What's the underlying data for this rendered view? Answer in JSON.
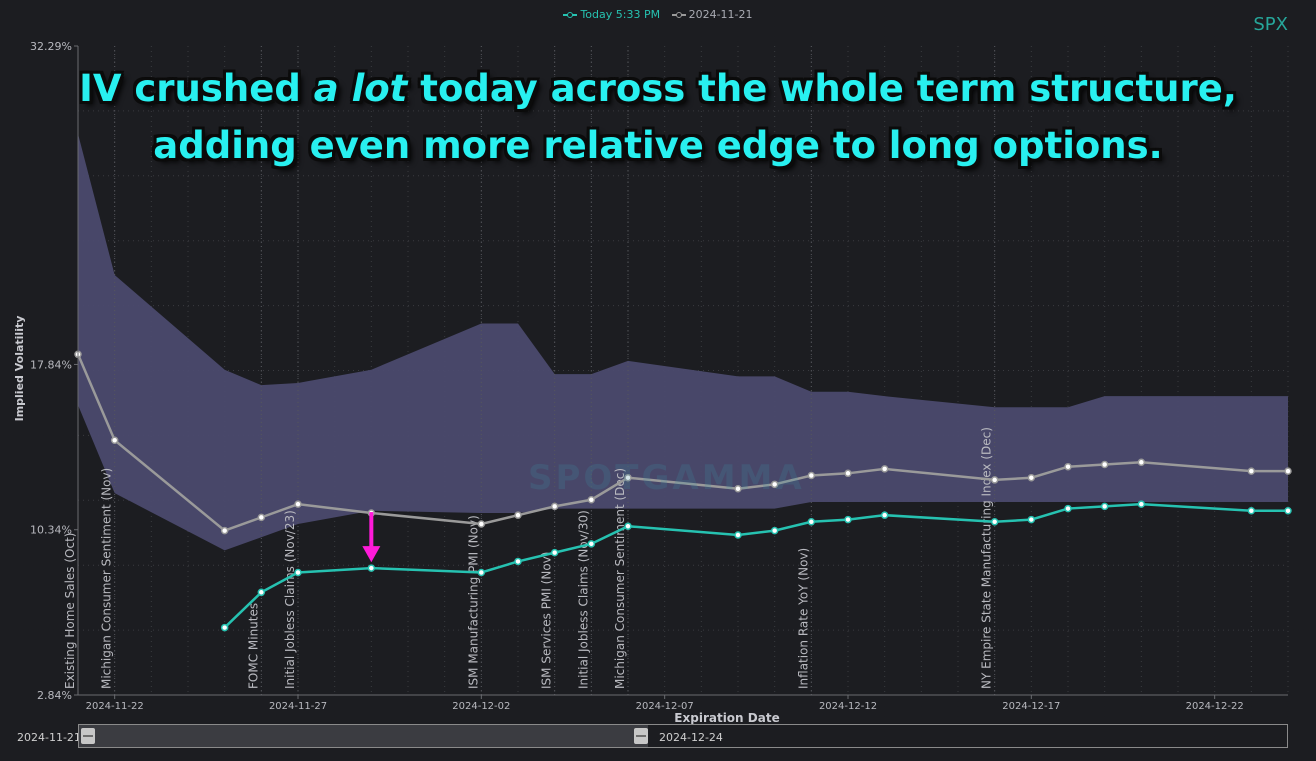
{
  "ticker": "SPX",
  "headline": {
    "line1_before": "IV crushed ",
    "line1_emph": "a lot",
    "line1_after": " today across the whole term structure,",
    "line2": "adding even more relative edge to long options."
  },
  "watermark": "SPOTGAMMA",
  "legend": {
    "today": "Today 5:33 PM",
    "prior": "2024-11-21"
  },
  "range_selector": {
    "start_label": "2024-11-21",
    "end_label": "2024-12-24",
    "selected_fraction": 0.47
  },
  "colors": {
    "background": "#1c1d21",
    "today_line": "#26c2b1",
    "prior_line": "#9a9a9a",
    "band_fill": "#4b4a6e",
    "arrow": "#ff1ad9",
    "headline": "#28f0f0"
  },
  "chart_data": {
    "type": "line",
    "xlabel": "Expiration Date",
    "ylabel": "Implied Volatility",
    "xlim": [
      "2024-11-21",
      "2024-12-24"
    ],
    "yticks": [
      {
        "value": 2.84,
        "label": "2.84%"
      },
      {
        "value": 10.34,
        "label": "10.34%"
      },
      {
        "value": 17.84,
        "label": "17.84%"
      },
      {
        "value": 32.29,
        "label": "32.29%"
      }
    ],
    "xticks": [
      "2024-11-22",
      "2024-11-27",
      "2024-12-02",
      "2024-12-07",
      "2024-12-12",
      "2024-12-17",
      "2024-12-22"
    ],
    "grid": true,
    "series": [
      {
        "name": "Today 5:33 PM",
        "x": [
          "2024-11-25",
          "2024-11-26",
          "2024-11-27",
          "2024-11-29",
          "2024-12-02",
          "2024-12-03",
          "2024-12-04",
          "2024-12-05",
          "2024-12-06",
          "2024-12-09",
          "2024-12-10",
          "2024-12-11",
          "2024-12-12",
          "2024-12-13",
          "2024-12-16",
          "2024-12-17",
          "2024-12-18",
          "2024-12-19",
          "2024-12-20",
          "2024-12-23",
          "2024-12-24"
        ],
        "values": [
          5.9,
          7.5,
          8.4,
          8.6,
          8.4,
          8.9,
          9.3,
          9.7,
          10.5,
          10.1,
          10.3,
          10.7,
          10.8,
          11.0,
          10.7,
          10.8,
          11.3,
          11.4,
          11.5,
          11.2,
          11.2
        ]
      },
      {
        "name": "2024-11-21",
        "x": [
          "2024-11-21",
          "2024-11-22",
          "2024-11-25",
          "2024-11-26",
          "2024-11-27",
          "2024-11-29",
          "2024-12-02",
          "2024-12-03",
          "2024-12-04",
          "2024-12-05",
          "2024-12-06",
          "2024-12-09",
          "2024-12-10",
          "2024-12-11",
          "2024-12-12",
          "2024-12-13",
          "2024-12-16",
          "2024-12-17",
          "2024-12-18",
          "2024-12-19",
          "2024-12-20",
          "2024-12-23",
          "2024-12-24"
        ],
        "values": [
          18.3,
          14.4,
          10.3,
          10.9,
          11.5,
          11.1,
          10.6,
          11.0,
          11.4,
          11.7,
          12.7,
          12.2,
          12.4,
          12.8,
          12.9,
          13.1,
          12.6,
          12.7,
          13.2,
          13.3,
          13.4,
          13.0,
          13.0
        ]
      }
    ],
    "band": {
      "x": [
        "2024-11-21",
        "2024-11-22",
        "2024-11-25",
        "2024-11-26",
        "2024-11-27",
        "2024-11-29",
        "2024-12-02",
        "2024-12-03",
        "2024-12-04",
        "2024-12-05",
        "2024-12-06",
        "2024-12-09",
        "2024-12-10",
        "2024-12-11",
        "2024-12-12",
        "2024-12-13",
        "2024-12-16",
        "2024-12-17",
        "2024-12-18",
        "2024-12-19",
        "2024-12-20",
        "2024-12-23",
        "2024-12-24"
      ],
      "upper": [
        28.3,
        21.9,
        17.6,
        16.9,
        17.0,
        17.6,
        19.7,
        19.7,
        17.4,
        17.4,
        18.0,
        17.3,
        17.3,
        16.6,
        16.6,
        16.4,
        15.9,
        15.9,
        15.9,
        16.4,
        16.4,
        16.4,
        16.4
      ],
      "lower": [
        16.0,
        12.0,
        9.4,
        10.0,
        10.6,
        11.2,
        11.1,
        11.1,
        11.3,
        11.3,
        11.3,
        11.3,
        11.3,
        11.6,
        11.6,
        11.6,
        11.6,
        11.6,
        11.6,
        11.6,
        11.6,
        11.6,
        11.6
      ]
    },
    "events": [
      {
        "date": "2024-11-21",
        "label": "Existing Home Sales (Oct)"
      },
      {
        "date": "2024-11-22",
        "label": "Michigan Consumer Sentiment (Nov)"
      },
      {
        "date": "2024-11-26",
        "label": "FOMC Minutes"
      },
      {
        "date": "2024-11-27",
        "label": "Initial Jobless Claims (Nov/23)"
      },
      {
        "date": "2024-12-02",
        "label": "ISM Manufacturing PMI (Nov)"
      },
      {
        "date": "2024-12-04",
        "label": "ISM Services PMI (Nov)"
      },
      {
        "date": "2024-12-05",
        "label": "Initial Jobless Claims (Nov/30)"
      },
      {
        "date": "2024-12-06",
        "label": "Michigan Consumer Sentiment (Dec)"
      },
      {
        "date": "2024-12-11",
        "label": "Inflation Rate YoY (Nov)"
      },
      {
        "date": "2024-12-16",
        "label": "NY Empire State Manufacturing Index (Dec)"
      }
    ],
    "arrow_annotation": {
      "date": "2024-11-29",
      "value": 8.6
    }
  }
}
